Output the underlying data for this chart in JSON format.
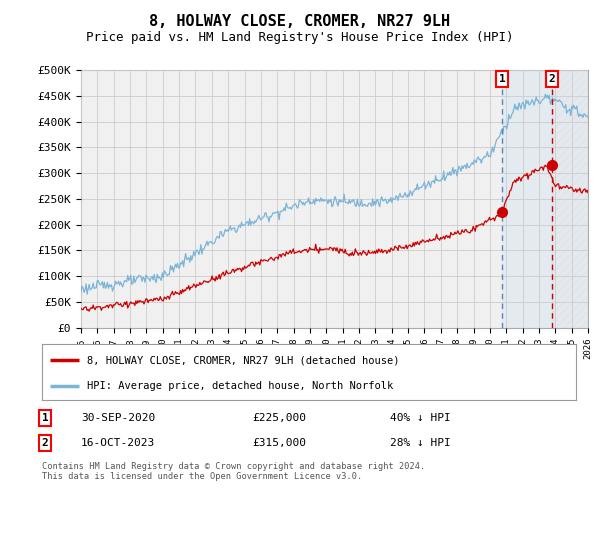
{
  "title": "8, HOLWAY CLOSE, CROMER, NR27 9LH",
  "subtitle": "Price paid vs. HM Land Registry's House Price Index (HPI)",
  "ylim": [
    0,
    500000
  ],
  "yticks": [
    0,
    50000,
    100000,
    150000,
    200000,
    250000,
    300000,
    350000,
    400000,
    450000,
    500000
  ],
  "ytick_labels": [
    "£0",
    "£50K",
    "£100K",
    "£150K",
    "£200K",
    "£250K",
    "£300K",
    "£350K",
    "£400K",
    "£450K",
    "£500K"
  ],
  "hpi_color": "#7ab4d8",
  "price_color": "#cc0000",
  "grid_color": "#cccccc",
  "background_color": "#ffffff",
  "plot_bg_color": "#f0f0f0",
  "shade_color": "#d0e4f0",
  "hatch_color": "#c8d8e8",
  "sale1_x": 2020.75,
  "sale1_y": 225000,
  "sale2_x": 2023.79,
  "sale2_y": 315000,
  "xlim_start": 1995,
  "xlim_end": 2026,
  "legend_red_label": "8, HOLWAY CLOSE, CROMER, NR27 9LH (detached house)",
  "legend_blue_label": "HPI: Average price, detached house, North Norfolk",
  "footer": "Contains HM Land Registry data © Crown copyright and database right 2024.\nThis data is licensed under the Open Government Licence v3.0.",
  "title_fontsize": 11,
  "subtitle_fontsize": 9,
  "tick_fontsize": 8
}
